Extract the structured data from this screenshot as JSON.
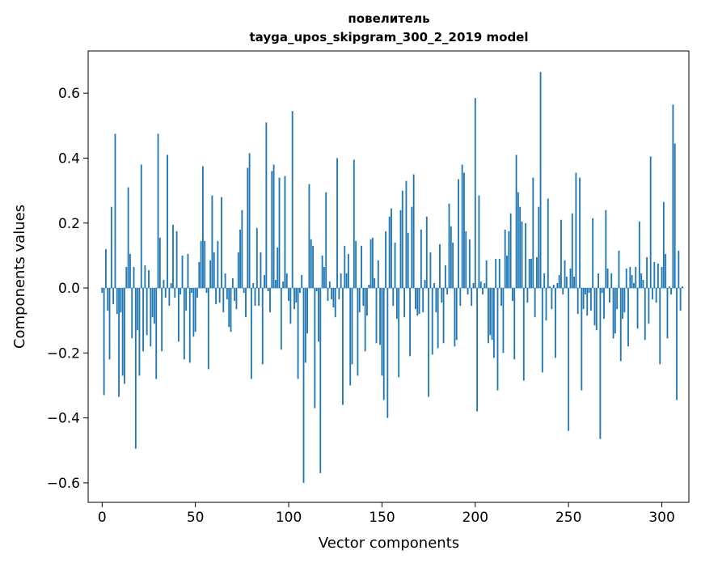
{
  "chart_data": {
    "type": "bar",
    "title": "повелитель",
    "subtitle": "tayga_upos_skipgram_300_2_2019 model",
    "xlabel": "Vector components",
    "ylabel": "Components values",
    "xlim": [
      -7.5,
      314.5
    ],
    "ylim": [
      -0.66,
      0.73
    ],
    "xticks": [
      0,
      50,
      100,
      150,
      200,
      250,
      300
    ],
    "xtick_labels": [
      "0",
      "50",
      "100",
      "150",
      "200",
      "250",
      "300"
    ],
    "yticks": [
      -0.6,
      -0.4,
      -0.2,
      0.0,
      0.2,
      0.4,
      0.6
    ],
    "ytick_labels": [
      "−0.6",
      "−0.4",
      "−0.2",
      "0.0",
      "0.2",
      "0.4",
      "0.6"
    ],
    "grid": false,
    "bar_color": "#1f77b4",
    "values": [
      -0.015,
      -0.33,
      0.12,
      -0.07,
      -0.22,
      0.25,
      -0.05,
      0.475,
      -0.08,
      -0.335,
      -0.075,
      -0.27,
      -0.295,
      0.065,
      0.31,
      0.105,
      -0.155,
      0.065,
      -0.495,
      -0.13,
      -0.27,
      0.38,
      -0.195,
      0.07,
      -0.145,
      0.055,
      -0.18,
      -0.09,
      -0.11,
      -0.28,
      0.475,
      0.155,
      -0.195,
      0.025,
      -0.03,
      0.41,
      -0.055,
      0.015,
      0.195,
      -0.03,
      0.175,
      -0.165,
      -0.02,
      0.1,
      -0.22,
      -0.07,
      0.105,
      -0.23,
      -0.015,
      -0.15,
      -0.135,
      -0.03,
      0.08,
      0.145,
      0.375,
      0.145,
      -0.015,
      -0.25,
      0.085,
      0.285,
      0.11,
      -0.05,
      0.145,
      -0.045,
      0.28,
      -0.075,
      0.045,
      -0.035,
      -0.12,
      -0.135,
      0.03,
      -0.04,
      -0.065,
      0.11,
      0.18,
      0.24,
      -0.015,
      -0.09,
      0.37,
      0.415,
      -0.28,
      0.015,
      -0.055,
      0.185,
      -0.055,
      0.11,
      -0.235,
      0.04,
      0.51,
      -0.01,
      -0.075,
      0.36,
      0.38,
      0.025,
      0.125,
      0.34,
      -0.19,
      0.02,
      0.345,
      0.045,
      -0.04,
      -0.11,
      0.545,
      -0.065,
      -0.045,
      -0.28,
      -0.015,
      0.04,
      -0.6,
      -0.23,
      -0.14,
      0.32,
      0.15,
      0.13,
      -0.37,
      -0.01,
      -0.165,
      -0.57,
      0.1,
      0.065,
      0.295,
      -0.04,
      0.02,
      -0.035,
      -0.06,
      -0.09,
      0.4,
      -0.035,
      0.045,
      -0.36,
      0.13,
      0.045,
      0.105,
      -0.3,
      -0.235,
      0.395,
      0.145,
      -0.27,
      -0.075,
      0.13,
      -0.055,
      -0.195,
      -0.085,
      0.01,
      0.15,
      0.155,
      0.03,
      -0.17,
      0.085,
      -0.175,
      -0.27,
      -0.345,
      0.175,
      -0.4,
      0.22,
      0.245,
      -0.055,
      0.14,
      -0.095,
      -0.275,
      0.24,
      0.3,
      -0.09,
      0.33,
      0.17,
      -0.21,
      0.25,
      0.35,
      -0.065,
      -0.085,
      -0.08,
      0.18,
      -0.075,
      0.025,
      0.22,
      -0.335,
      0.11,
      -0.205,
      0.015,
      -0.075,
      -0.185,
      0.135,
      -0.045,
      -0.17,
      0.07,
      -0.02,
      0.26,
      0.19,
      0.14,
      -0.18,
      -0.16,
      0.335,
      -0.055,
      0.38,
      0.355,
      0.175,
      -0.02,
      0.15,
      -0.055,
      0.015,
      0.585,
      -0.38,
      0.285,
      0.02,
      -0.02,
      0.015,
      0.085,
      -0.17,
      -0.145,
      -0.16,
      -0.215,
      0.09,
      -0.315,
      0.09,
      -0.055,
      -0.2,
      0.18,
      0.1,
      0.175,
      0.23,
      -0.04,
      -0.22,
      0.41,
      0.295,
      0.25,
      0.205,
      -0.285,
      0.2,
      -0.045,
      0.09,
      0.09,
      0.34,
      -0.09,
      0.095,
      0.25,
      0.665,
      -0.26,
      0.045,
      -0.1,
      0.275,
      0.005,
      -0.065,
      0.01,
      -0.215,
      0.015,
      0.04,
      0.21,
      -0.02,
      0.085,
      0.035,
      -0.44,
      0.06,
      0.23,
      0.035,
      0.355,
      -0.08,
      0.34,
      -0.315,
      -0.065,
      -0.02,
      -0.085,
      -0.015,
      -0.07,
      0.215,
      -0.115,
      -0.13,
      0.045,
      -0.465,
      -0.015,
      -0.095,
      0.24,
      0.06,
      -0.045,
      0.045,
      -0.155,
      -0.14,
      -0.065,
      0.115,
      -0.225,
      -0.095,
      -0.075,
      0.06,
      -0.18,
      0.065,
      0.04,
      0.015,
      0.065,
      -0.125,
      0.205,
      0.045,
      0.025,
      -0.16,
      0.095,
      -0.11,
      0.405,
      -0.035,
      0.08,
      -0.045,
      0.075,
      -0.235,
      0.065,
      0.265,
      0.105,
      -0.155,
      0.005,
      -0.02,
      0.565,
      0.445,
      -0.345,
      0.115,
      -0.07,
      0.005
    ]
  }
}
